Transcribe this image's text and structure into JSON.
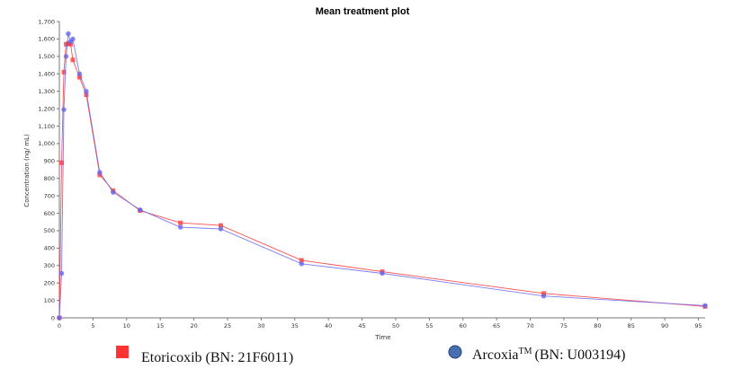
{
  "chart_data": {
    "type": "line",
    "title": "Mean treatment plot",
    "xlabel": "Time",
    "ylabel": "Concentration (ng/ mL)",
    "xlim": [
      0,
      96
    ],
    "ylim": [
      0,
      1700
    ],
    "x_ticks": [
      "0",
      "5",
      "10",
      "15",
      "20",
      "25",
      "30",
      "35",
      "40",
      "45",
      "50",
      "55",
      "60",
      "65",
      "70",
      "75",
      "80",
      "85",
      "90",
      "95"
    ],
    "y_ticks": [
      "0",
      "100",
      "200",
      "300",
      "400",
      "500",
      "600",
      "700",
      "800",
      "900",
      "1,000",
      "1,100",
      "1,200",
      "1,300",
      "1,400",
      "1,500",
      "1,600",
      "1,700"
    ],
    "grid": false,
    "legend_position": "bottom",
    "series": [
      {
        "name": "Etoricoxib (BN: 21F6011)",
        "color": "#ff3333",
        "marker": "square",
        "x": [
          0,
          0.33,
          0.67,
          1,
          1.33,
          1.67,
          2,
          3,
          4,
          6,
          8,
          12,
          18,
          24,
          36,
          48,
          72,
          96
        ],
        "y": [
          0,
          890,
          1410,
          1570,
          1575,
          1570,
          1480,
          1380,
          1280,
          820,
          730,
          615,
          545,
          530,
          330,
          265,
          140,
          65
        ]
      },
      {
        "name": "Arcoxia",
        "name_sup": "TM",
        "name_rest": "(BN: U003194)",
        "color": "#6666ee",
        "marker": "circle",
        "x": [
          0,
          0.33,
          0.67,
          1,
          1.33,
          1.67,
          2,
          3,
          4,
          6,
          8,
          12,
          18,
          24,
          36,
          48,
          72,
          96
        ],
        "y": [
          0,
          255,
          1195,
          1500,
          1630,
          1585,
          1600,
          1400,
          1300,
          835,
          720,
          620,
          520,
          510,
          310,
          255,
          125,
          70
        ]
      }
    ]
  }
}
